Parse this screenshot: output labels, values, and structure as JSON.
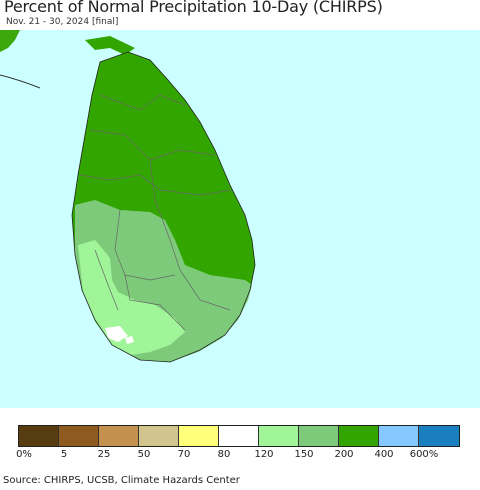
{
  "title": "Percent of Normal Precipitation 10-Day (CHIRPS)",
  "subtitle": "Nov. 21 - 30, 2024 [final]",
  "source": "Source: CHIRPS, UCSB, Climate Hazards Center",
  "colors": {
    "ocean": "#ccffff",
    "land_outside": "#3ca70a",
    "category_400": "#33a500",
    "category_200": "#7dcb7a",
    "category_150": "#a0f599",
    "category_120": "#ffffff",
    "boundary": "#555555"
  },
  "legend": {
    "colors": [
      "#573b11",
      "#8e5a1f",
      "#c4904d",
      "#d1c48c",
      "#ffff7a",
      "#ffffff",
      "#a0f599",
      "#7dcb7a",
      "#33a500",
      "#85c8ff",
      "#197fbf"
    ],
    "labels": [
      "0%",
      "5",
      "25",
      "50",
      "70",
      "80",
      "120",
      "150",
      "200",
      "400",
      "600%"
    ]
  }
}
